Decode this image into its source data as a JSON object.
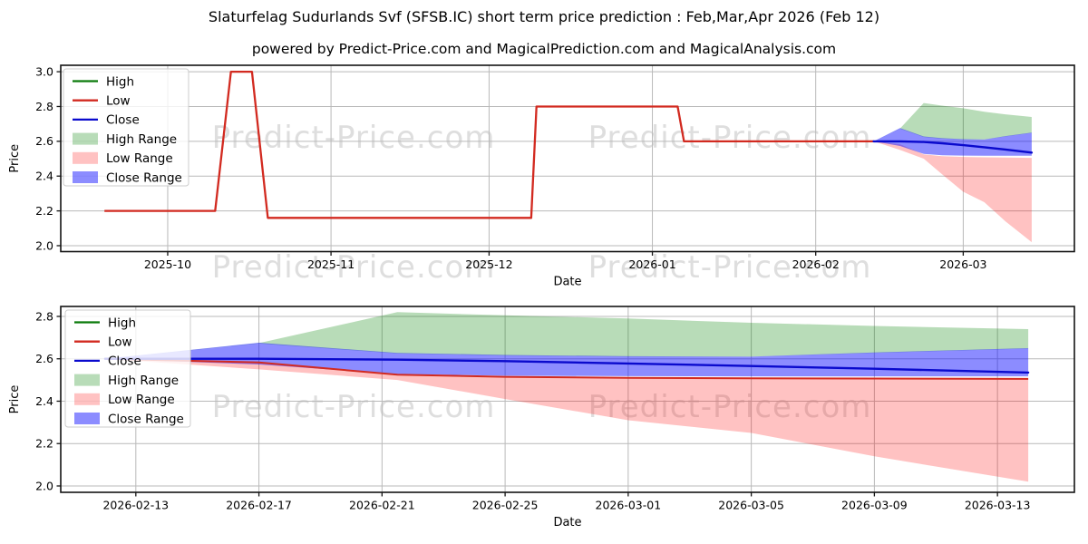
{
  "title": "Slaturfelag Sudurlands Svf (SFSB.IC) short term price prediction : Feb,Mar,Apr 2026 (Feb 12)",
  "subtitle": "powered by Predict-Price.com and MagicalPrediction.com and MagicalAnalysis.com",
  "watermark": {
    "text": "Predict-Price.com"
  },
  "colors": {
    "high_line": "#0a7a0a",
    "low_line": "#d22a20",
    "close_line": "#0a0acd",
    "high_range_fill": "rgba(0,128,0,0.28)",
    "low_range_fill": "rgba(255,0,0,0.24)",
    "close_range_fill": "rgba(10,10,255,0.47)",
    "grid": "#b9b9b9",
    "spine": "#141414",
    "watermark": "#dedede",
    "legend_border": "#cccccc",
    "legend_bg": "rgba(255,255,255,0.8)"
  },
  "legend": [
    {
      "label": "High",
      "swatch": "line",
      "color_key": "high_line"
    },
    {
      "label": "Low",
      "swatch": "line",
      "color_key": "low_line"
    },
    {
      "label": "Close",
      "swatch": "line",
      "color_key": "close_line"
    },
    {
      "label": "High Range",
      "swatch": "patch",
      "color_key": "high_range_fill"
    },
    {
      "label": "Low Range",
      "swatch": "patch",
      "color_key": "low_range_fill"
    },
    {
      "label": "Close Range",
      "swatch": "patch",
      "color_key": "close_range_fill"
    }
  ],
  "chart_data": [
    {
      "type": "line",
      "name": "history-and-forecast",
      "xlabel": "Date",
      "ylabel": "Price",
      "x_unit": "days since 2025-09-01",
      "xlim": [
        9.7,
        202.1
      ],
      "ylim": [
        1.966,
        3.037
      ],
      "yticks": [
        2.0,
        2.2,
        2.4,
        2.6,
        2.8,
        3.0
      ],
      "xticks": [
        {
          "label": "2025-10",
          "day": 30
        },
        {
          "label": "2025-11",
          "day": 61
        },
        {
          "label": "2025-12",
          "day": 91
        },
        {
          "label": "2026-01",
          "day": 122
        },
        {
          "label": "2026-02",
          "day": 153
        },
        {
          "label": "2026-03",
          "day": 181
        }
      ],
      "show_history": true,
      "show_forecast_low_line": false,
      "forecast_day_offset": 153,
      "legend_position": "upper-left",
      "grid": true
    },
    {
      "type": "line",
      "name": "forecast-detail",
      "xlabel": "Date",
      "ylabel": "Price",
      "x_unit": "days since 2026-02-01",
      "xlim": [
        9.56,
        42.5
      ],
      "ylim": [
        1.97,
        2.847
      ],
      "yticks": [
        2.0,
        2.2,
        2.4,
        2.6,
        2.8
      ],
      "xticks": [
        {
          "label": "2026-02-13",
          "day": 12
        },
        {
          "label": "2026-02-17",
          "day": 16
        },
        {
          "label": "2026-02-21",
          "day": 20
        },
        {
          "label": "2026-02-25",
          "day": 24
        },
        {
          "label": "2026-03-01",
          "day": 28
        },
        {
          "label": "2026-03-05",
          "day": 32
        },
        {
          "label": "2026-03-09",
          "day": 36
        },
        {
          "label": "2026-03-13",
          "day": 40
        }
      ],
      "show_history": false,
      "show_forecast_low_line": true,
      "forecast_day_offset": 0,
      "legend_position": "upper-left",
      "grid": true
    }
  ],
  "history": {
    "name": "Low",
    "days_since_sep1": [
      18,
      39,
      42,
      46,
      49,
      99,
      100,
      126.8,
      128,
      164
    ],
    "values": [
      2.2,
      2.2,
      3.0,
      3.0,
      2.16,
      2.16,
      2.8,
      2.8,
      2.6,
      2.6
    ]
  },
  "forecast": {
    "days_from_feb1": [
      11,
      16,
      20.5,
      24,
      28,
      32,
      36,
      41
    ],
    "high_range_top": [
      2.6,
      2.674,
      2.82,
      2.805,
      2.79,
      2.77,
      2.755,
      2.74
    ],
    "high_range_bottom": [
      2.6,
      2.672,
      2.625,
      2.615,
      2.61,
      2.61,
      2.628,
      2.648
    ],
    "close_range_top": [
      2.6,
      2.676,
      2.628,
      2.618,
      2.612,
      2.61,
      2.63,
      2.65
    ],
    "close": [
      2.6,
      2.6,
      2.596,
      2.589,
      2.578,
      2.566,
      2.553,
      2.535
    ],
    "close_range_bottom": [
      2.6,
      2.573,
      2.528,
      2.52,
      2.518,
      2.517,
      2.517,
      2.517
    ],
    "low": [
      2.6,
      2.583,
      2.525,
      2.515,
      2.51,
      2.508,
      2.507,
      2.505
    ],
    "low_range_bottom": [
      2.6,
      2.55,
      2.5,
      2.41,
      2.31,
      2.25,
      2.14,
      2.02
    ]
  }
}
